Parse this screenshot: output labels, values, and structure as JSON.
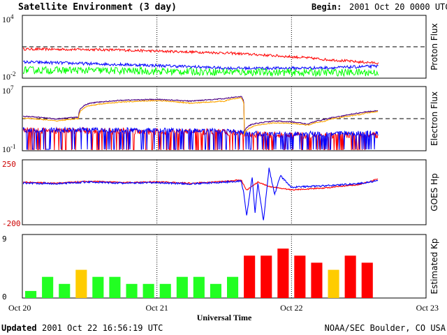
{
  "header": {
    "title": "Satellite Environment (3 day)",
    "begin_label": "Begin:",
    "begin_value": "2001 Oct 20 0000 UTC"
  },
  "footer": {
    "updated_label": "Updated",
    "updated_value": "2001 Oct 22 16:56:19 UTC",
    "credit": "NOAA/SEC Boulder, CO USA"
  },
  "chart_data": [
    {
      "type": "line",
      "ylabel": "Proton Flux",
      "yscale": "log",
      "ylim": [
        0.01,
        10000
      ],
      "ytick_labels": [
        {
          "base": "10",
          "exp": "4"
        },
        {
          "base": "10",
          "exp": "-2"
        }
      ],
      "threshold": 10,
      "x_range_hours": [
        0,
        72
      ],
      "series": [
        {
          "color": "#ff0000",
          "style": "band",
          "noise": 0.12,
          "x": [
            0,
            12,
            18,
            24,
            30,
            36,
            40,
            44,
            48,
            54,
            60,
            63.5
          ],
          "values": [
            6,
            5.5,
            4.8,
            3.8,
            3.2,
            2.6,
            2.0,
            1.5,
            1.1,
            0.6,
            0.35,
            0.28
          ]
        },
        {
          "color": "#0000ff",
          "style": "band",
          "noise": 0.14,
          "x": [
            0,
            12,
            24,
            36,
            48,
            56,
            63.5
          ],
          "values": [
            0.35,
            0.24,
            0.16,
            0.09,
            0.09,
            0.1,
            0.14
          ]
        },
        {
          "color": "#00ff00",
          "style": "band",
          "noise": 0.35,
          "x": [
            0,
            12,
            24,
            36,
            48,
            63.5
          ],
          "values": [
            0.06,
            0.055,
            0.045,
            0.04,
            0.035,
            0.035
          ]
        }
      ]
    },
    {
      "type": "line",
      "ylabel": "Electron Flux",
      "yscale": "log",
      "ylim": [
        0.1,
        10000000
      ],
      "ytick_labels": [
        {
          "base": "10",
          "exp": "7"
        },
        {
          "base": "10",
          "exp": "-1"
        }
      ],
      "threshold": 1000,
      "x_range_hours": [
        0,
        72
      ],
      "series": [
        {
          "color": "#ff0000",
          "style": "spiky",
          "noise": 0.4,
          "spike_floor": 0.1,
          "x": [
            0,
            12,
            24,
            36,
            39,
            40,
            48,
            56,
            63.5
          ],
          "values": [
            30,
            30,
            25,
            20,
            15,
            10,
            8,
            8,
            8
          ]
        },
        {
          "color": "#0000ff",
          "style": "spiky",
          "noise": 0.3,
          "spike_floor": 0.15,
          "x": [
            0,
            12,
            24,
            36,
            39,
            40,
            48,
            56,
            63.5
          ],
          "values": [
            40,
            40,
            35,
            30,
            20,
            15,
            12,
            15,
            15
          ]
        },
        {
          "color": "#4b0082",
          "style": "line",
          "noise": 0.06,
          "x": [
            0,
            6,
            10,
            12,
            18,
            24,
            30,
            36,
            39,
            39.6,
            41,
            45,
            48,
            51,
            54,
            57,
            60,
            63.5
          ],
          "values": [
            2000,
            900,
            1500,
            80000,
            200000,
            250000,
            150000,
            300000,
            600000,
            20,
            200,
            500,
            400,
            200,
            800,
            2000,
            5000,
            10000
          ]
        },
        {
          "color": "#ffa500",
          "style": "line",
          "noise": 0.06,
          "x": [
            0,
            6,
            10,
            12,
            18,
            24,
            30,
            36,
            39,
            39.6,
            41,
            45,
            48,
            51,
            54,
            57,
            60,
            63.5
          ],
          "values": [
            1200,
            500,
            1000,
            40000,
            120000,
            180000,
            80000,
            150000,
            400000,
            10,
            100,
            300,
            250,
            150,
            500,
            1500,
            3000,
            8000
          ]
        }
      ]
    },
    {
      "type": "line",
      "ylabel": "GOES Hp",
      "ylim": [
        -200,
        250
      ],
      "ytick_labels": [
        "250",
        "-200"
      ],
      "x_range_hours": [
        0,
        72
      ],
      "series": [
        {
          "color": "#ff0000",
          "style": "line",
          "noise": 4,
          "x": [
            0,
            6,
            12,
            18,
            24,
            30,
            36,
            39,
            40,
            42,
            44,
            48,
            54,
            60,
            63.5
          ],
          "values": [
            95,
            88,
            102,
            92,
            98,
            88,
            100,
            112,
            40,
            95,
            65,
            42,
            55,
            78,
            118
          ]
        },
        {
          "color": "#0000ff",
          "style": "line",
          "noise": 6,
          "x": [
            0,
            6,
            12,
            18,
            24,
            30,
            36,
            39,
            39.5,
            40,
            41,
            41.5,
            42,
            43,
            44,
            45,
            46,
            48,
            54,
            60,
            63.5
          ],
          "values": [
            90,
            85,
            97,
            88,
            92,
            83,
            95,
            104,
            20,
            -140,
            130,
            -120,
            90,
            -170,
            190,
            10,
            140,
            60,
            70,
            85,
            105
          ]
        }
      ]
    },
    {
      "type": "bar",
      "ylabel": "Estimated Kp",
      "ylim": [
        0,
        9
      ],
      "ytick_labels": [
        "9",
        "0"
      ],
      "bar_width_hours": 3,
      "bar_gap_hours": 1,
      "values": [
        1,
        3,
        2,
        4,
        3,
        3,
        2,
        2,
        2,
        3,
        3,
        2,
        3,
        6,
        6,
        7,
        6,
        5,
        4,
        6,
        5
      ],
      "colors": [
        "#22ff22",
        "#22ff22",
        "#22ff22",
        "#ffcc00",
        "#22ff22",
        "#22ff22",
        "#22ff22",
        "#22ff22",
        "#22ff22",
        "#22ff22",
        "#22ff22",
        "#22ff22",
        "#22ff22",
        "#ff0000",
        "#ff0000",
        "#ff0000",
        "#ff0000",
        "#ff0000",
        "#ffcc00",
        "#ff0000",
        "#ff0000"
      ],
      "x_tick_labels": [
        "Oct 20",
        "Oct 21",
        "Oct 22",
        "Oct 23"
      ],
      "xlabel": "Universal Time"
    }
  ]
}
